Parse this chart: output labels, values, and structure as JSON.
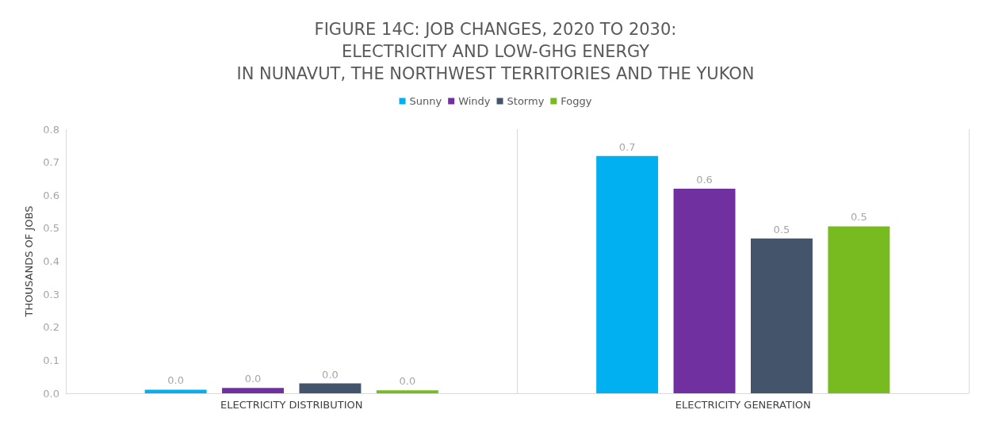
{
  "chart_data": {
    "type": "bar",
    "title": "FIGURE 14C: JOB CHANGES, 2020 TO 2030:\nELECTRICITY AND LOW-GHG ENERGY\nIN NUNAVUT, THE NORTHWEST TERRITORIES AND THE YUKON",
    "ylabel": "THOUSANDS OF JOBS",
    "categories": [
      "ELECTRICITY DISTRIBUTION",
      "ELECTRICITY GENERATION"
    ],
    "series": [
      {
        "name": "Sunny",
        "color": "#00b0f0",
        "values": [
          0.011,
          0.719
        ],
        "value_labels": [
          "0.0",
          "0.7"
        ]
      },
      {
        "name": "Windy",
        "color": "#7030a0",
        "values": [
          0.016,
          0.62
        ],
        "value_labels": [
          "0.0",
          "0.6"
        ]
      },
      {
        "name": "Stormy",
        "color": "#44546a",
        "values": [
          0.03,
          0.469
        ],
        "value_labels": [
          "0.0",
          "0.5"
        ]
      },
      {
        "name": "Foggy",
        "color": "#77bb20",
        "values": [
          0.009,
          0.506
        ],
        "value_labels": [
          "0.0",
          "0.5"
        ]
      }
    ],
    "ylim": [
      0,
      0.8
    ],
    "yticks": [
      {
        "value": 0,
        "label": "0.0"
      },
      0.1,
      0.2,
      0.3,
      0.4,
      0.5,
      0.6,
      0.7,
      0.8
    ],
    "grid": "x",
    "legend": "top"
  }
}
